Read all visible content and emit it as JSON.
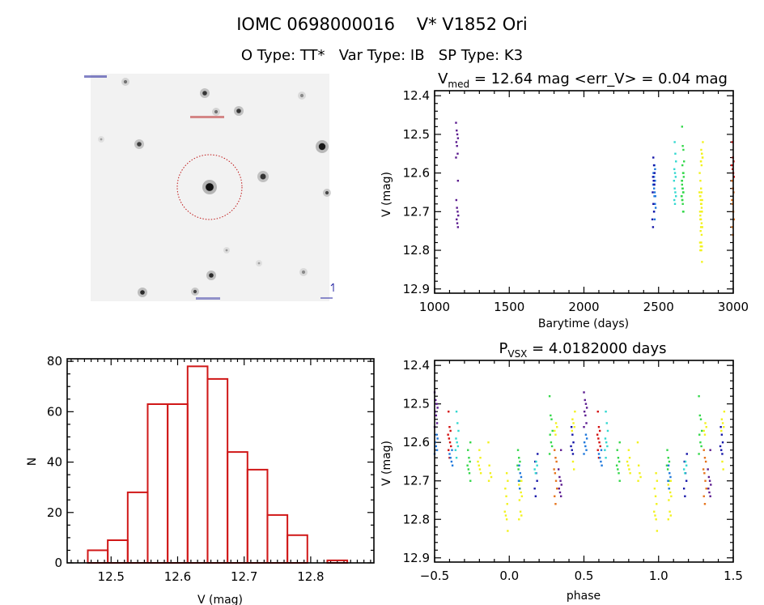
{
  "header": {
    "title_line1": "IOMC 0698000016    V* V1852 Ori",
    "title_line2": "O Type: TT*   Var Type: IB   SP Type: K3"
  },
  "colors": {
    "purple": "#5b1b8f",
    "navy": "#1414a8",
    "blue": "#1f78dc",
    "cyan": "#33d8d0",
    "green": "#33d84a",
    "yellow": "#f2f21e",
    "orange": "#e6731a",
    "red": "#d41010",
    "histogram": "#d01818"
  },
  "finder_image": {
    "type": "sky-image",
    "target_marker": "red-dotted-circle"
  },
  "chart_data": [
    {
      "type": "bar",
      "subtype": "histogram",
      "title": "",
      "xlabel": "V (mag)",
      "ylabel": "N",
      "xlim": [
        12.434,
        12.895
      ],
      "ylim": [
        0,
        81
      ],
      "xticks": [
        "12.5",
        "12.6",
        "12.7",
        "12.8"
      ],
      "yticks": [
        "0",
        "20",
        "40",
        "60",
        "80"
      ],
      "bin_edges": [
        12.465,
        12.495,
        12.525,
        12.555,
        12.585,
        12.615,
        12.645,
        12.675,
        12.705,
        12.735,
        12.765,
        12.795,
        12.825,
        12.855
      ],
      "values": [
        5,
        9,
        28,
        63,
        63,
        78,
        73,
        44,
        37,
        19,
        11,
        0,
        1
      ]
    },
    {
      "type": "scatter",
      "title_main": "V",
      "title_sub": "med",
      "title_rest": " = 12.64 mag <err_V> = 0.04 mag",
      "xlabel": "Barytime (days)",
      "ylabel": "V (mag)",
      "xlim": [
        1000,
        3000
      ],
      "ylim": [
        12.911,
        12.387
      ],
      "y_reversed": true,
      "xticks": [
        "1000",
        "1500",
        "2000",
        "2500",
        "3000"
      ],
      "yticks": [
        "12.4",
        "12.5",
        "12.6",
        "12.7",
        "12.8",
        "12.9"
      ]
    },
    {
      "type": "scatter",
      "title_main": "P",
      "title_sub": "VSX",
      "title_rest": " = 4.0182000 days",
      "xlabel": "phase",
      "ylabel": "V (mag)",
      "xlim": [
        -0.5,
        1.5
      ],
      "ylim": [
        12.911,
        12.387
      ],
      "y_reversed": true,
      "xticks": [
        "-0.5",
        "0.0",
        "0.5",
        "1.0",
        "1.5"
      ],
      "yticks": [
        "12.4",
        "12.5",
        "12.6",
        "12.7",
        "12.8",
        "12.9"
      ]
    }
  ],
  "observations": [
    {
      "color": "purple",
      "barytime": 1150,
      "phase": -0.49,
      "mags": [
        12.47,
        12.49,
        12.5,
        12.51,
        12.52,
        12.53,
        12.55,
        12.56
      ]
    },
    {
      "color": "blue",
      "barytime": 2470,
      "phase": -0.49,
      "mags": [
        12.58,
        12.59,
        12.6,
        12.61,
        12.62,
        12.63
      ]
    },
    {
      "color": "red",
      "barytime": 2998,
      "phase": -0.4,
      "mags": [
        12.52,
        12.56,
        12.57,
        12.58,
        12.59,
        12.6,
        12.61,
        12.62,
        12.64
      ]
    },
    {
      "color": "blue",
      "barytime": 2472,
      "phase": -0.39,
      "mags": [
        12.62,
        12.63,
        12.64,
        12.65,
        12.66
      ]
    },
    {
      "color": "cyan",
      "barytime": 2610,
      "phase": -0.35,
      "mags": [
        12.52,
        12.55,
        12.57,
        12.59,
        12.6,
        12.61,
        12.62,
        12.64
      ]
    },
    {
      "color": "green",
      "barytime": 2660,
      "phase": -0.27,
      "mags": [
        12.6,
        12.62,
        12.64,
        12.65,
        12.66,
        12.67,
        12.68,
        12.7
      ]
    },
    {
      "color": "yellow",
      "barytime": 2780,
      "phase": -0.2,
      "mags": [
        12.62,
        12.64,
        12.65,
        12.66,
        12.67,
        12.68
      ]
    },
    {
      "color": "yellow",
      "barytime": 2782,
      "phase": -0.13,
      "mags": [
        12.6,
        12.66,
        12.68,
        12.69,
        12.7
      ]
    },
    {
      "color": "yellow",
      "barytime": 2784,
      "phase": -0.02,
      "mags": [
        12.68,
        12.7,
        12.72,
        12.74,
        12.76,
        12.78,
        12.79,
        12.8,
        12.83
      ]
    },
    {
      "color": "green",
      "barytime": 2662,
      "phase": 0.065,
      "mags": [
        12.62,
        12.64,
        12.65,
        12.66,
        12.67,
        12.7
      ]
    },
    {
      "color": "yellow",
      "barytime": 2786,
      "phase": 0.075,
      "mags": [
        12.7,
        12.71,
        12.72,
        12.73,
        12.74,
        12.75,
        12.78,
        12.79,
        12.8
      ]
    },
    {
      "color": "blue",
      "barytime": 2474,
      "phase": 0.07,
      "mags": [
        12.66,
        12.68,
        12.69,
        12.7,
        12.72
      ]
    },
    {
      "color": "navy",
      "barytime": 2465,
      "phase": 0.18,
      "mags": [
        12.63,
        12.65,
        12.68,
        12.7,
        12.72,
        12.74
      ]
    },
    {
      "color": "cyan",
      "barytime": 2612,
      "phase": 0.18,
      "mags": [
        12.65,
        12.66,
        12.67,
        12.68
      ]
    },
    {
      "color": "green",
      "barytime": 2664,
      "phase": 0.28,
      "mags": [
        12.48,
        12.53,
        12.54,
        12.57,
        12.58,
        12.6,
        12.61,
        12.63
      ]
    },
    {
      "color": "yellow",
      "barytime": 2788,
      "phase": 0.31,
      "mags": [
        12.55,
        12.56,
        12.57,
        12.58
      ]
    },
    {
      "color": "orange",
      "barytime": 2998,
      "phase": 0.31,
      "mags": [
        12.62,
        12.64,
        12.65,
        12.67,
        12.68,
        12.7,
        12.72,
        12.74,
        12.76
      ]
    },
    {
      "color": "purple",
      "barytime": 1152,
      "phase": 0.34,
      "mags": [
        12.62,
        12.67,
        12.69,
        12.7,
        12.71,
        12.72,
        12.73,
        12.74
      ]
    },
    {
      "color": "navy",
      "barytime": 2467,
      "phase": 0.42,
      "mags": [
        12.56,
        12.58,
        12.6,
        12.61,
        12.62,
        12.63
      ]
    },
    {
      "color": "yellow",
      "barytime": 2790,
      "phase": 0.43,
      "mags": [
        12.52,
        12.54,
        12.55,
        12.56,
        12.57,
        12.65,
        12.67
      ]
    }
  ]
}
